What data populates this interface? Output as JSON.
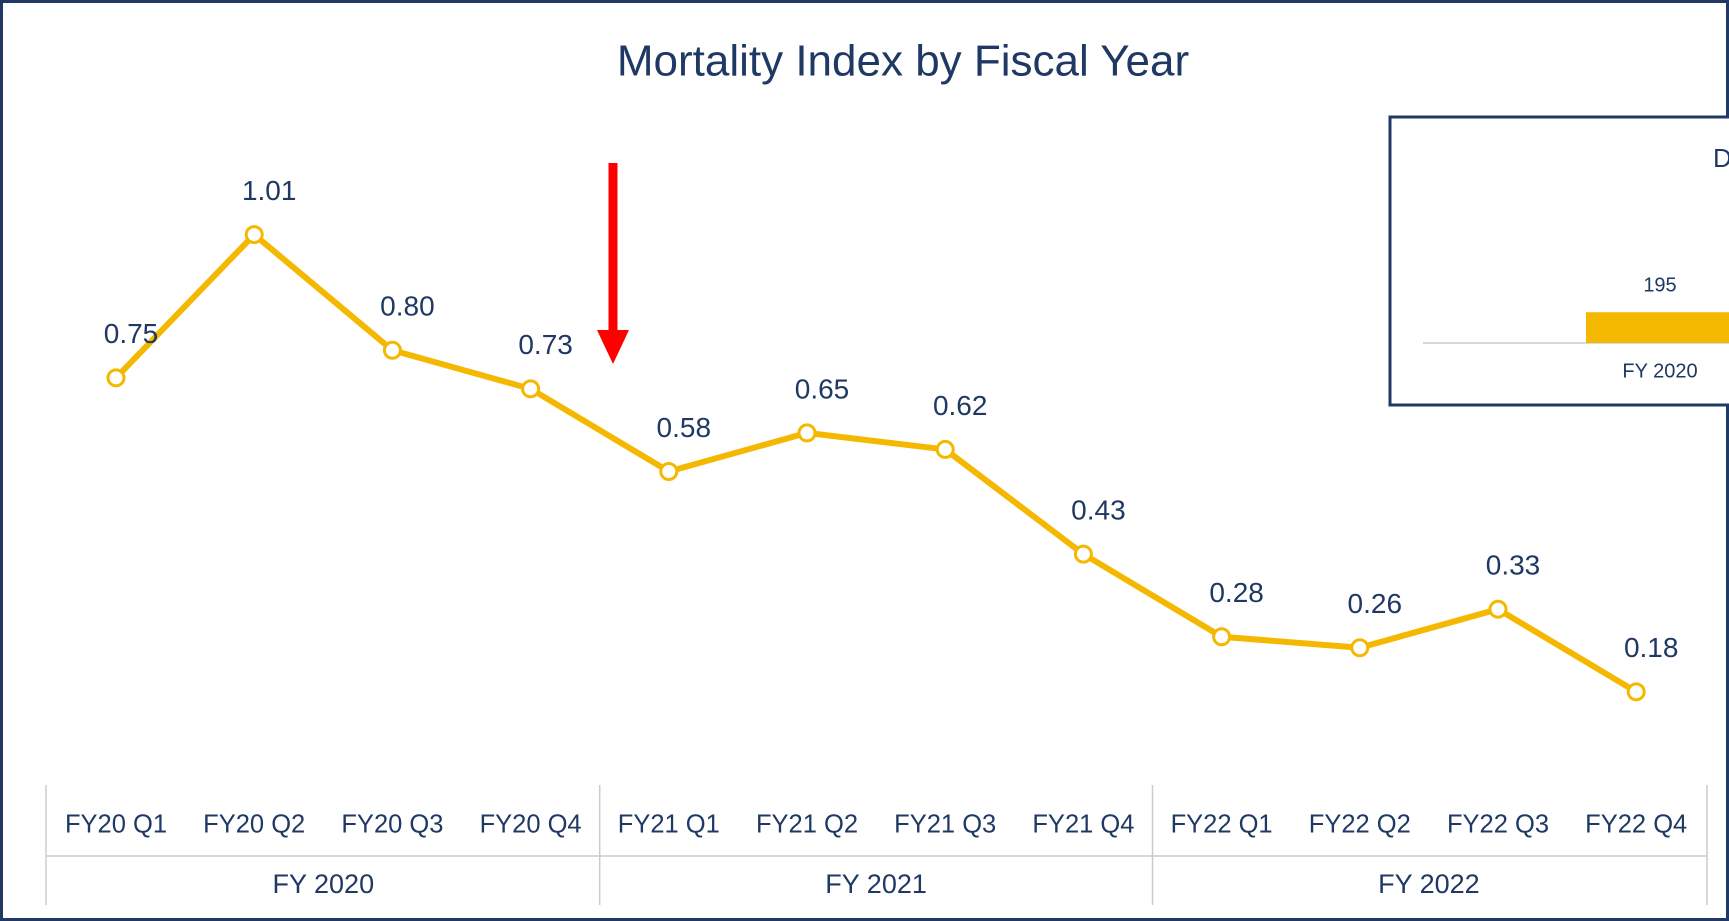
{
  "chart_data": [
    {
      "type": "line",
      "title": "Mortality Index by Fiscal Year",
      "categories": [
        "FY20 Q1",
        "FY20 Q2",
        "FY20 Q3",
        "FY20 Q4",
        "FY21 Q1",
        "FY21 Q2",
        "FY21 Q3",
        "FY21 Q4",
        "FY22 Q1",
        "FY22 Q2",
        "FY22 Q3",
        "FY22 Q4"
      ],
      "groups": [
        "FY 2020",
        "FY 2021",
        "FY 2022"
      ],
      "values": [
        0.75,
        1.01,
        0.8,
        0.73,
        0.58,
        0.65,
        0.62,
        0.43,
        0.28,
        0.26,
        0.33,
        0.18
      ],
      "value_labels": [
        "0.75",
        "1.01",
        "0.80",
        "0.73",
        "0.58",
        "0.65",
        "0.62",
        "0.43",
        "0.28",
        "0.26",
        "0.33",
        "0.18"
      ],
      "color": "#f5b800",
      "ylim": [
        0,
        1.1
      ]
    },
    {
      "type": "bar",
      "title": "D",
      "categories": [
        "FY 2020"
      ],
      "values": [
        195
      ],
      "color": "#f5b800",
      "ylim": [
        0,
        1900
      ]
    }
  ]
}
